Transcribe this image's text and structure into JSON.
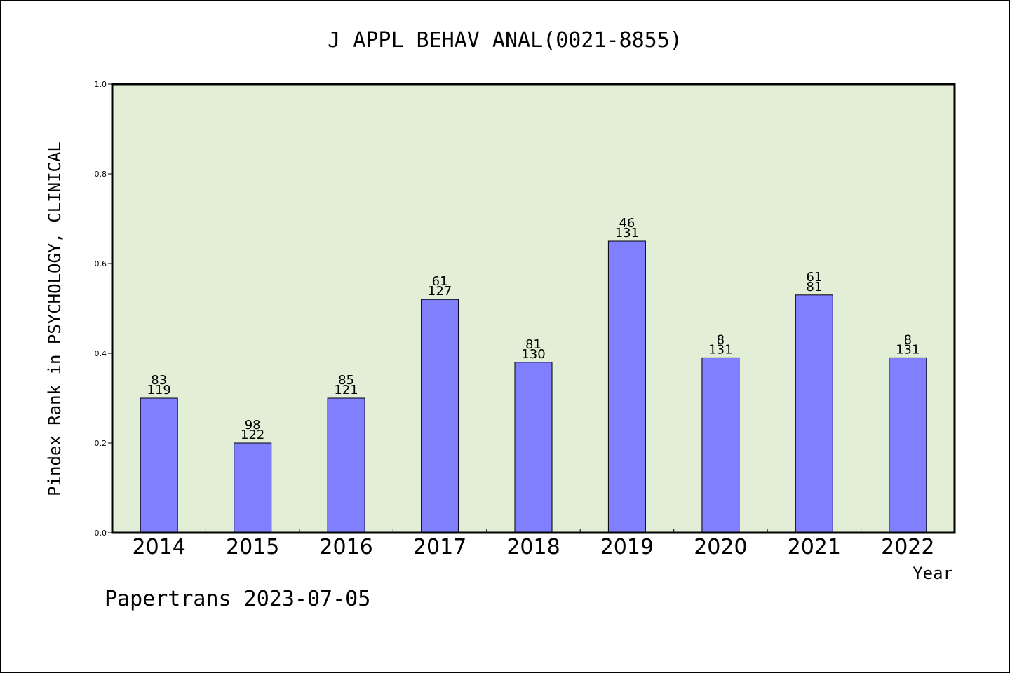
{
  "chart_data": {
    "type": "bar",
    "title": "J APPL BEHAV ANAL(0021-8855)",
    "xlabel": "Year",
    "ylabel": "Pindex Rank in PSYCHOLOGY, CLINICAL",
    "categories": [
      "2014",
      "2015",
      "2016",
      "2017",
      "2018",
      "2019",
      "2020",
      "2021",
      "2022"
    ],
    "values": [
      0.3,
      0.2,
      0.3,
      0.52,
      0.38,
      0.65,
      0.39,
      0.53,
      0.39
    ],
    "rank": [
      "83",
      "98",
      "85",
      "61",
      "81",
      "46",
      "8",
      "61",
      "8"
    ],
    "total": [
      "119",
      "122",
      "121",
      "127",
      "130",
      "131",
      "131",
      "81",
      "131"
    ],
    "ylim": [
      0,
      1.0
    ],
    "yticks": [
      "0.0",
      "0.2",
      "0.4",
      "0.6",
      "0.8",
      "1.0"
    ],
    "grid": false,
    "colors": {
      "bar": "#8080ff",
      "plot_bg": "#e2efd6",
      "bar_stroke": "#000000"
    }
  },
  "footer": "Papertrans 2023-07-05"
}
